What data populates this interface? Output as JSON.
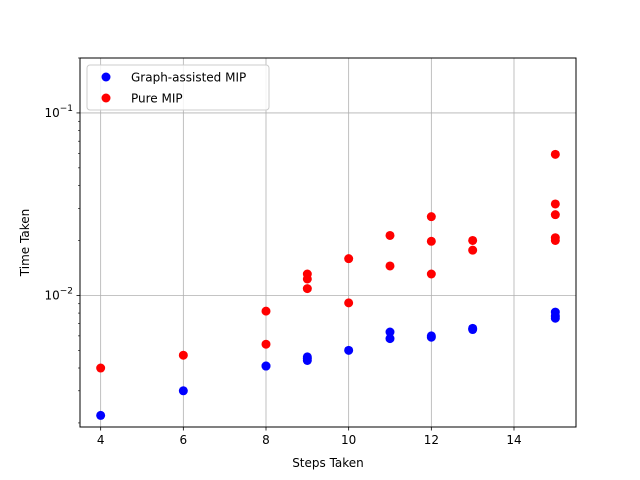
{
  "chart_data": {
    "type": "scatter",
    "xlabel": "Steps Taken",
    "ylabel": "Time Taken",
    "xlim": [
      3.5,
      15.5
    ],
    "ylim": [
      0.0019,
      0.2
    ],
    "y_scale": "log",
    "x_ticks": [
      4,
      6,
      8,
      10,
      12,
      14
    ],
    "y_ticks": [
      {
        "value": 0.01,
        "base": "10",
        "exp": "−2"
      },
      {
        "value": 0.1,
        "base": "10",
        "exp": "−1"
      }
    ],
    "grid": true,
    "legend_position": "upper-left",
    "series": [
      {
        "name": "Graph-assisted MIP",
        "color": "#0000ff",
        "points": [
          [
            4,
            0.0022
          ],
          [
            6,
            0.003
          ],
          [
            8,
            0.0041
          ],
          [
            8,
            0.0041
          ],
          [
            9,
            0.0044
          ],
          [
            9,
            0.0045
          ],
          [
            9,
            0.0046
          ],
          [
            10,
            0.005
          ],
          [
            11,
            0.0058
          ],
          [
            11,
            0.0063
          ],
          [
            12,
            0.0059
          ],
          [
            12,
            0.006
          ],
          [
            13,
            0.0065
          ],
          [
            13,
            0.0066
          ],
          [
            15,
            0.0075
          ],
          [
            15,
            0.0077
          ],
          [
            15,
            0.0081
          ]
        ]
      },
      {
        "name": "Pure MIP",
        "color": "#ff0000",
        "points": [
          [
            4,
            0.004
          ],
          [
            6,
            0.0047
          ],
          [
            8,
            0.0054
          ],
          [
            8,
            0.0082
          ],
          [
            9,
            0.0109
          ],
          [
            9,
            0.0123
          ],
          [
            9,
            0.0131
          ],
          [
            10,
            0.0091
          ],
          [
            10,
            0.0159
          ],
          [
            11,
            0.0145
          ],
          [
            11,
            0.0213
          ],
          [
            12,
            0.0131
          ],
          [
            12,
            0.0198
          ],
          [
            12,
            0.027
          ],
          [
            13,
            0.0177
          ],
          [
            13,
            0.02
          ],
          [
            15,
            0.02
          ],
          [
            15,
            0.0207
          ],
          [
            15,
            0.0277
          ],
          [
            15,
            0.0317
          ],
          [
            15,
            0.0593
          ]
        ]
      }
    ]
  }
}
